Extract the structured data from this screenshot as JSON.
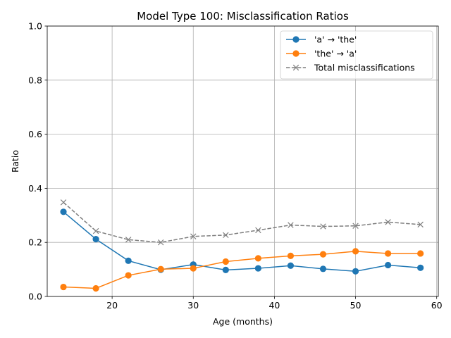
{
  "chart_data": {
    "type": "line",
    "title": "Model Type 100: Misclassification Ratios",
    "xlabel": "Age (months)",
    "ylabel": "Ratio",
    "xlim": [
      12,
      60.2
    ],
    "ylim": [
      0,
      1.0
    ],
    "xticks": [
      20,
      30,
      40,
      50,
      60
    ],
    "yticks": [
      0.0,
      0.2,
      0.4,
      0.6,
      0.8,
      1.0
    ],
    "xtick_labels": [
      "20",
      "30",
      "40",
      "50",
      "60"
    ],
    "ytick_labels": [
      "0.0",
      "0.2",
      "0.4",
      "0.6",
      "0.8",
      "1.0"
    ],
    "grid": true,
    "legend_position": "top-right",
    "x": [
      14,
      18,
      22,
      26,
      30,
      34,
      38,
      42,
      46,
      50,
      54,
      58
    ],
    "series": [
      {
        "name": "'a' → 'the'",
        "color": "#1f77b4",
        "marker": "circle",
        "linestyle": "solid",
        "values": [
          0.313,
          0.212,
          0.132,
          0.099,
          0.118,
          0.098,
          0.104,
          0.114,
          0.102,
          0.093,
          0.116,
          0.106
        ]
      },
      {
        "name": "'the' → 'a'",
        "color": "#ff7f0e",
        "marker": "circle",
        "linestyle": "solid",
        "values": [
          0.035,
          0.03,
          0.078,
          0.101,
          0.104,
          0.129,
          0.141,
          0.15,
          0.156,
          0.167,
          0.159,
          0.159
        ]
      },
      {
        "name": "Total misclassifications",
        "color": "#7f7f7f",
        "marker": "x",
        "linestyle": "dashed",
        "values": [
          0.348,
          0.242,
          0.21,
          0.2,
          0.222,
          0.227,
          0.245,
          0.264,
          0.259,
          0.261,
          0.275,
          0.266
        ]
      }
    ]
  }
}
